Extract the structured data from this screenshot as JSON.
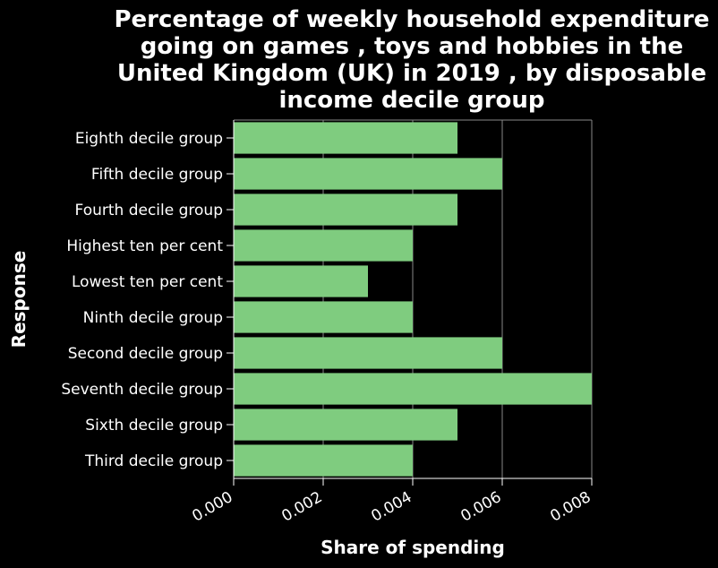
{
  "chart_data": {
    "type": "bar",
    "orientation": "horizontal",
    "title_lines": [
      "Percentage of weekly household expenditure",
      "going on games , toys and hobbies in the",
      "United Kingdom (UK) in 2019 , by disposable",
      "income decile group"
    ],
    "xlabel": "Share of spending",
    "ylabel": "Response",
    "categories": [
      "Eighth decile group",
      "Fifth decile group",
      "Fourth decile group",
      "Highest ten per cent",
      "Lowest ten per cent",
      "Ninth decile group",
      "Second decile group",
      "Seventh decile group",
      "Sixth decile group",
      "Third decile group"
    ],
    "values": [
      0.005,
      0.006,
      0.005,
      0.004,
      0.003,
      0.004,
      0.006,
      0.008,
      0.005,
      0.004
    ],
    "xlim": [
      0,
      0.008
    ],
    "xticks": [
      "0.000",
      "0.002",
      "0.004",
      "0.006",
      "0.008"
    ],
    "grid": "vertical",
    "bar_color": "#7fcc7f",
    "background": "#000000",
    "grid_color": "#888888"
  }
}
